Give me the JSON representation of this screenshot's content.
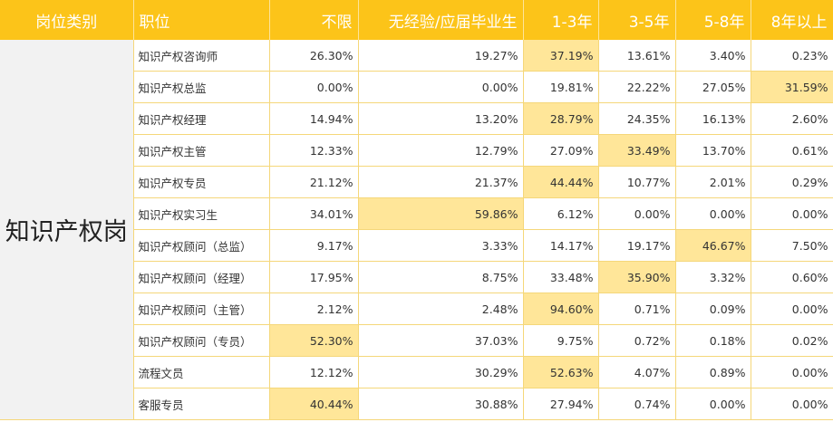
{
  "table": {
    "header": [
      "岗位类别",
      "职位",
      "不限",
      "无经验/应届毕业生",
      "1-3年",
      "3-5年",
      "5-8年",
      "8年以上"
    ],
    "category": "知识产权岗",
    "rows": [
      [
        "知识产权咨询师",
        "26.30%",
        "19.27%",
        "37.19%",
        "13.61%",
        "3.40%",
        "0.23%"
      ],
      [
        "知识产权总监",
        "0.00%",
        "0.00%",
        "19.81%",
        "22.22%",
        "27.05%",
        "31.59%"
      ],
      [
        "知识产权经理",
        "14.94%",
        "13.20%",
        "28.79%",
        "24.35%",
        "16.13%",
        "2.60%"
      ],
      [
        "知识产权主管",
        "12.33%",
        "12.79%",
        "27.09%",
        "33.49%",
        "13.70%",
        "0.61%"
      ],
      [
        "知识产权专员",
        "21.12%",
        "21.37%",
        "44.44%",
        "10.77%",
        "2.01%",
        "0.29%"
      ],
      [
        "知识产权实习生",
        "34.01%",
        "59.86%",
        "6.12%",
        "0.00%",
        "0.00%",
        "0.00%"
      ],
      [
        "知识产权顾问（总监）",
        "9.17%",
        "3.33%",
        "14.17%",
        "19.17%",
        "46.67%",
        "7.50%"
      ],
      [
        "知识产权顾问（经理）",
        "17.95%",
        "8.75%",
        "33.48%",
        "35.90%",
        "3.32%",
        "0.60%"
      ],
      [
        "知识产权顾问（主管）",
        "2.12%",
        "2.48%",
        "94.60%",
        "0.71%",
        "0.09%",
        "0.00%"
      ],
      [
        "知识产权顾问（专员）",
        "52.30%",
        "37.03%",
        "9.75%",
        "0.72%",
        "0.18%",
        "0.02%"
      ],
      [
        "流程文员",
        "12.12%",
        "30.29%",
        "52.63%",
        "4.07%",
        "0.89%",
        "0.00%"
      ],
      [
        "客服专员",
        "40.44%",
        "30.88%",
        "27.94%",
        "0.74%",
        "0.00%",
        "0.00%"
      ]
    ]
  }
}
